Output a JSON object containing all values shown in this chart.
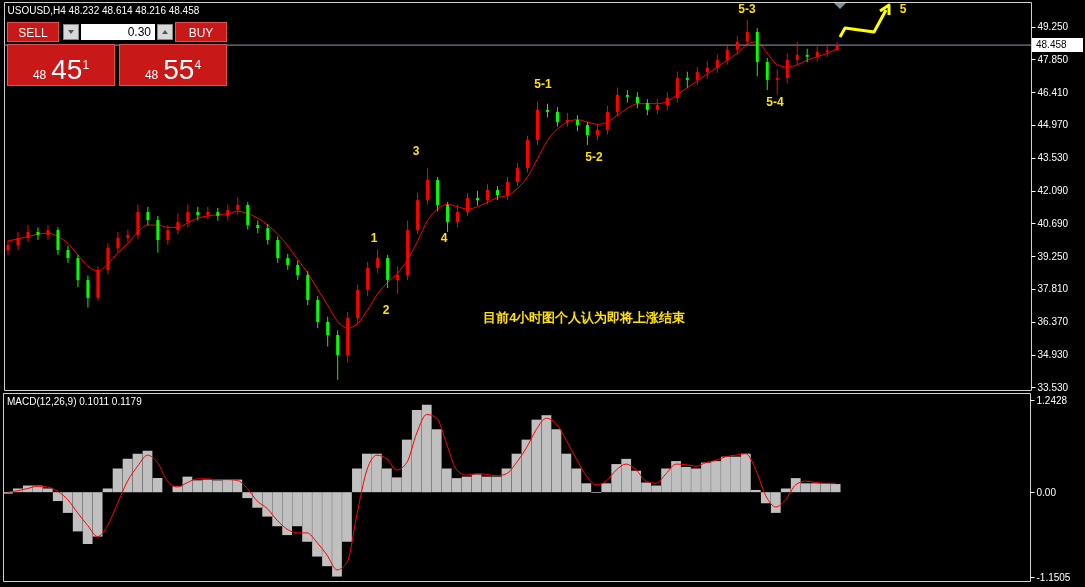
{
  "chart_data": [
    {
      "type": "candlestick",
      "title": "USOUSD,H4 48.232 48.614 48.216 48.458",
      "categories": [
        null,
        null,
        null,
        null,
        null,
        null,
        null,
        null,
        null,
        null,
        null,
        null,
        null,
        null,
        null,
        null,
        null,
        null,
        null,
        null,
        null,
        null,
        null,
        null,
        null,
        null,
        null,
        null,
        null,
        null,
        null,
        null,
        null,
        null,
        null,
        null,
        null,
        null,
        null,
        null,
        null,
        null,
        null,
        null,
        null,
        null,
        null,
        null,
        null,
        null,
        null,
        null,
        null,
        null,
        null,
        null,
        null,
        null,
        null,
        null,
        null,
        null,
        null,
        null,
        null,
        null,
        null,
        null,
        null,
        null,
        null,
        null,
        null,
        null,
        null,
        null,
        null,
        null,
        null,
        null,
        null,
        null,
        null,
        null,
        null,
        null,
        null,
        null,
        null,
        null,
        null,
        null,
        null,
        null,
        null,
        null,
        null,
        null,
        null,
        null,
        null,
        null,
        null
      ],
      "ohlc": [
        [
          39.5,
          39.93,
          39.3,
          39.73
        ],
        [
          39.73,
          40.3,
          39.5,
          40.04
        ],
        [
          40.04,
          40.6,
          39.85,
          40.3
        ],
        [
          40.3,
          40.5,
          39.95,
          40.17
        ],
        [
          40.17,
          40.6,
          39.95,
          40.38
        ],
        [
          40.38,
          40.5,
          39.3,
          39.51
        ],
        [
          39.51,
          39.7,
          38.95,
          39.16
        ],
        [
          39.16,
          39.3,
          37.9,
          38.2
        ],
        [
          38.2,
          38.4,
          37.0,
          37.42
        ],
        [
          37.42,
          38.8,
          37.3,
          38.64
        ],
        [
          38.64,
          39.8,
          38.45,
          39.6
        ],
        [
          39.6,
          40.3,
          39.4,
          40.04
        ],
        [
          40.04,
          40.4,
          39.85,
          40.17
        ],
        [
          40.17,
          41.5,
          40.0,
          41.17
        ],
        [
          41.17,
          41.4,
          40.6,
          40.82
        ],
        [
          40.82,
          41.0,
          39.4,
          39.95
        ],
        [
          39.95,
          40.6,
          39.75,
          40.38
        ],
        [
          40.38,
          41.1,
          40.2,
          40.73
        ],
        [
          40.73,
          41.5,
          40.5,
          41.17
        ],
        [
          41.17,
          41.4,
          40.8,
          41.04
        ],
        [
          41.04,
          41.4,
          40.85,
          41.17
        ],
        [
          41.17,
          41.35,
          40.8,
          41.0
        ],
        [
          41.0,
          41.5,
          40.8,
          41.26
        ],
        [
          41.26,
          41.8,
          41.05,
          41.48
        ],
        [
          41.48,
          41.6,
          40.4,
          40.6
        ],
        [
          40.6,
          40.8,
          40.25,
          40.47
        ],
        [
          40.47,
          40.65,
          39.75,
          39.95
        ],
        [
          39.95,
          40.1,
          38.95,
          39.16
        ],
        [
          39.16,
          39.35,
          38.65,
          38.86
        ],
        [
          38.86,
          39.05,
          38.2,
          38.42
        ],
        [
          38.42,
          38.6,
          37.1,
          37.33
        ],
        [
          37.33,
          37.5,
          36.1,
          36.37
        ],
        [
          36.37,
          36.6,
          35.3,
          35.8
        ],
        [
          35.8,
          36.0,
          33.85,
          34.93
        ],
        [
          34.93,
          36.8,
          34.6,
          36.54
        ],
        [
          36.54,
          38.0,
          36.3,
          37.77
        ],
        [
          37.77,
          39.0,
          37.5,
          38.73
        ],
        [
          38.73,
          39.55,
          38.5,
          39.16
        ],
        [
          39.16,
          39.3,
          37.85,
          38.2
        ],
        [
          38.2,
          38.8,
          37.6,
          38.42
        ],
        [
          38.42,
          40.8,
          38.2,
          40.38
        ],
        [
          40.38,
          42.0,
          40.2,
          41.69
        ],
        [
          41.69,
          43.1,
          41.5,
          42.57
        ],
        [
          42.57,
          42.7,
          41.2,
          41.48
        ],
        [
          41.48,
          41.6,
          40.3,
          40.73
        ],
        [
          40.73,
          41.5,
          40.5,
          41.17
        ],
        [
          41.17,
          42.0,
          41.0,
          41.78
        ],
        [
          41.78,
          42.1,
          41.45,
          41.69
        ],
        [
          41.69,
          42.4,
          41.5,
          42.13
        ],
        [
          42.13,
          42.3,
          41.7,
          41.91
        ],
        [
          41.91,
          42.7,
          41.7,
          42.48
        ],
        [
          42.48,
          43.3,
          42.3,
          43.09
        ],
        [
          43.09,
          44.5,
          42.9,
          44.32
        ],
        [
          44.32,
          46.0,
          44.1,
          45.63
        ],
        [
          45.63,
          45.9,
          45.3,
          45.54
        ],
        [
          45.54,
          45.75,
          44.9,
          45.1
        ],
        [
          45.1,
          45.5,
          44.9,
          45.19
        ],
        [
          45.19,
          45.4,
          44.7,
          44.97
        ],
        [
          44.97,
          45.1,
          44.1,
          44.53
        ],
        [
          44.53,
          45.0,
          44.3,
          44.75
        ],
        [
          44.75,
          45.8,
          44.55,
          45.54
        ],
        [
          45.54,
          46.6,
          45.35,
          46.28
        ],
        [
          46.28,
          46.5,
          45.95,
          46.2
        ],
        [
          46.2,
          46.4,
          45.7,
          45.93
        ],
        [
          45.93,
          46.1,
          45.4,
          45.63
        ],
        [
          45.63,
          46.1,
          45.45,
          45.84
        ],
        [
          45.84,
          46.4,
          45.6,
          46.15
        ],
        [
          46.15,
          47.3,
          45.95,
          47.02
        ],
        [
          47.02,
          47.3,
          46.6,
          46.94
        ],
        [
          46.94,
          47.5,
          46.7,
          47.28
        ],
        [
          47.28,
          47.75,
          47.0,
          47.46
        ],
        [
          47.46,
          48.05,
          47.25,
          47.81
        ],
        [
          47.81,
          48.5,
          47.6,
          48.25
        ],
        [
          48.25,
          48.85,
          48.05,
          48.6
        ],
        [
          48.6,
          49.55,
          48.4,
          49.03
        ],
        [
          49.03,
          49.2,
          47.1,
          47.72
        ],
        [
          47.72,
          47.9,
          46.5,
          46.94
        ],
        [
          46.94,
          47.4,
          46.3,
          47.02
        ],
        [
          47.02,
          48.1,
          46.8,
          47.81
        ],
        [
          47.81,
          48.6,
          47.6,
          48.03
        ],
        [
          48.03,
          48.3,
          47.7,
          47.95
        ],
        [
          47.95,
          48.4,
          47.75,
          48.16
        ],
        [
          48.16,
          48.5,
          47.95,
          48.232
        ],
        [
          48.232,
          48.614,
          48.216,
          48.458
        ],
        null,
        null,
        null,
        null,
        null,
        null,
        null,
        null,
        null,
        null,
        null,
        null,
        null,
        null,
        null,
        null,
        null,
        null,
        null
      ],
      "colors": [
        "#ff0000",
        "#ff0000",
        "#ff0000",
        "#00ff00",
        "#ff0000",
        "#00ff00",
        "#00ff00",
        "#00ff00",
        "#00ff00",
        "#ff0000",
        "#ff0000",
        "#ff0000",
        "#ff0000",
        "#ff0000",
        "#00ff00",
        "#00ff00",
        "#ff0000",
        "#ff0000",
        "#ff0000",
        "#00ff00",
        "#ff0000",
        "#00ff00",
        "#ff0000",
        "#ff0000",
        "#00ff00",
        "#00ff00",
        "#00ff00",
        "#00ff00",
        "#00ff00",
        "#00ff00",
        "#00ff00",
        "#00ff00",
        "#00ff00",
        "#00ff00",
        "#ff0000",
        "#ff0000",
        "#ff0000",
        "#ff0000",
        "#00ff00",
        "#ff0000",
        "#ff0000",
        "#ff0000",
        "#ff0000",
        "#00ff00",
        "#00ff00",
        "#ff0000",
        "#ff0000",
        "#00ff00",
        "#ff0000",
        "#00ff00",
        "#ff0000",
        "#ff0000",
        "#ff0000",
        "#ff0000",
        "#00ff00",
        "#00ff00",
        "#ff0000",
        "#00ff00",
        "#00ff00",
        "#ff0000",
        "#ff0000",
        "#ff0000",
        "#00ff00",
        "#00ff00",
        "#00ff00",
        "#ff0000",
        "#ff0000",
        "#ff0000",
        "#00ff00",
        "#ff0000",
        "#ff0000",
        "#ff0000",
        "#ff0000",
        "#ff0000",
        "#ff0000",
        "#00ff00",
        "#00ff00",
        "#ff0000",
        "#ff0000",
        "#ff0000",
        "#00ff00",
        "#ff0000",
        "#ff0000",
        "#ff0000",
        null,
        null,
        null,
        null,
        null,
        null,
        null,
        null,
        null,
        null,
        null,
        null,
        null,
        null,
        null,
        null,
        null,
        null,
        null
      ],
      "series": [
        {
          "type": "line",
          "color": "#ff0000",
          "values": [
            39.9,
            40.0,
            40.1,
            40.2,
            40.25,
            40.1,
            39.8,
            39.3,
            38.8,
            38.6,
            38.9,
            39.4,
            39.8,
            40.3,
            40.6,
            40.6,
            40.5,
            40.5,
            40.7,
            40.9,
            41.0,
            41.05,
            41.1,
            41.2,
            41.1,
            40.9,
            40.6,
            40.2,
            39.7,
            39.1,
            38.5,
            37.8,
            37.1,
            36.4,
            36.1,
            36.3,
            36.9,
            37.6,
            38.1,
            38.5,
            39.1,
            39.9,
            40.8,
            41.3,
            41.5,
            41.4,
            41.3,
            41.4,
            41.6,
            41.8,
            41.9,
            42.2,
            42.7,
            43.5,
            44.3,
            44.8,
            45.1,
            45.2,
            45.1,
            45.0,
            45.1,
            45.4,
            45.7,
            45.9,
            45.9,
            45.9,
            46.0,
            46.3,
            46.6,
            46.9,
            47.2,
            47.5,
            47.8,
            48.1,
            48.5,
            48.6,
            48.1,
            47.6,
            47.5,
            47.6,
            47.8,
            47.95,
            48.1,
            48.3,
            null,
            null,
            null,
            null,
            null,
            null,
            null,
            null,
            null,
            null,
            null,
            null,
            null,
            null,
            null,
            null,
            null,
            null,
            null
          ]
        }
      ],
      "ylim": [
        33.4,
        50.34
      ],
      "yticks": [
        {
          "value": 49.25,
          "label": "49.250"
        },
        {
          "value": 47.85,
          "label": "47.850"
        },
        {
          "value": 46.41,
          "label": "46.410"
        },
        {
          "value": 44.97,
          "label": "44.970"
        },
        {
          "value": 43.53,
          "label": "43.530"
        },
        {
          "value": 42.09,
          "label": "42.090"
        },
        {
          "value": 40.69,
          "label": "40.690"
        },
        {
          "value": 39.25,
          "label": "39.250"
        },
        {
          "value": 37.81,
          "label": "37.810"
        },
        {
          "value": 36.37,
          "label": "36.370"
        },
        {
          "value": 34.93,
          "label": "34.930"
        },
        {
          "value": 33.53,
          "label": "33.530"
        }
      ],
      "ref_lines": [
        {
          "axis": "y",
          "value": 48.458,
          "label": "48.458",
          "color": "#8c9cb0"
        }
      ],
      "annotations": [
        "SELL",
        "0.30",
        "BUY",
        "48 45$^{1}$",
        "48 55$^{4}$",
        "目前4小时图个人认为即将上涨结束",
        "1",
        "2",
        "3",
        "4",
        "5-1",
        "5-2",
        "5-3",
        "5-4",
        "5"
      ],
      "tick_labels": "y"
    },
    {
      "type": "bar",
      "title": "MACD(12,26,9) 0.1011 0.1179",
      "categories": [
        null,
        null,
        null,
        null,
        null,
        null,
        null,
        null,
        null,
        null,
        null,
        null,
        null,
        null,
        null,
        null,
        null,
        null,
        null,
        null,
        null,
        null,
        null,
        null,
        null,
        null,
        null,
        null,
        null,
        null,
        null,
        null,
        null,
        null,
        null,
        null,
        null,
        null,
        null,
        null,
        null,
        null,
        null,
        null,
        null,
        null,
        null,
        null,
        null,
        null,
        null,
        null,
        null,
        null,
        null,
        null,
        null,
        null,
        null,
        null,
        null,
        null,
        null,
        null,
        null,
        null,
        null,
        null,
        null,
        null,
        null,
        null,
        null,
        null,
        null,
        null,
        null,
        null,
        null,
        null,
        null,
        null,
        null,
        null,
        null,
        null,
        null,
        null,
        null,
        null,
        null,
        null,
        null,
        null,
        null,
        null,
        null,
        null,
        null,
        null,
        null,
        null,
        null
      ],
      "series": [
        {
          "color": "#c0c0c0",
          "values": [
            -0.02,
            0.05,
            0.09,
            0.09,
            0.05,
            -0.12,
            -0.28,
            -0.53,
            -0.7,
            -0.6,
            0.05,
            0.32,
            0.45,
            0.52,
            0.56,
            0.19,
            0,
            0.08,
            0.21,
            0.16,
            0.17,
            0.16,
            0.17,
            0.17,
            -0.08,
            -0.21,
            -0.33,
            -0.46,
            -0.58,
            -0.46,
            -0.67,
            -0.87,
            -1.0,
            -1.14,
            -0.67,
            0.32,
            0.52,
            0.52,
            0.32,
            0.2,
            0.71,
            1.11,
            1.18,
            0.85,
            0.32,
            0.19,
            0.21,
            0.24,
            0.21,
            0.21,
            0.32,
            0.52,
            0.71,
            0.98,
            1.04,
            0.85,
            0.52,
            0.32,
            0.12,
            -0.01,
            0.12,
            0.38,
            0.45,
            0.29,
            0.13,
            0.09,
            0.32,
            0.42,
            0.34,
            0.32,
            0.4,
            0.42,
            0.48,
            0.48,
            0.52,
            0.03,
            -0.15,
            -0.28,
            0.05,
            0.19,
            0.12,
            0.12,
            0.12,
            0.11,
            null,
            null,
            null,
            null,
            null,
            null,
            null,
            null,
            null,
            null,
            null,
            null,
            null,
            null,
            null,
            null,
            null,
            null,
            null
          ]
        },
        {
          "type": "line",
          "color": "#ff0000",
          "values": [
            0.0,
            0.02,
            0.05,
            0.08,
            0.07,
            0.01,
            -0.1,
            -0.28,
            -0.45,
            -0.6,
            -0.45,
            -0.15,
            0.15,
            0.35,
            0.5,
            0.4,
            0.15,
            0.07,
            0.13,
            0.18,
            0.18,
            0.17,
            0.17,
            0.16,
            0.05,
            -0.12,
            -0.22,
            -0.38,
            -0.5,
            -0.55,
            -0.55,
            -0.68,
            -0.85,
            -1.05,
            -0.95,
            -0.3,
            0.3,
            0.5,
            0.45,
            0.3,
            0.4,
            0.8,
            1.05,
            1.0,
            0.65,
            0.3,
            0.23,
            0.25,
            0.24,
            0.22,
            0.25,
            0.4,
            0.6,
            0.85,
            1.0,
            0.92,
            0.7,
            0.45,
            0.22,
            0.1,
            0.15,
            0.3,
            0.38,
            0.3,
            0.15,
            0.12,
            0.25,
            0.38,
            0.37,
            0.35,
            0.4,
            0.43,
            0.48,
            0.5,
            0.52,
            0.3,
            -0.05,
            -0.2,
            -0.1,
            0.1,
            0.15,
            0.13,
            0.12,
            0.12,
            null,
            null,
            null,
            null,
            null,
            null,
            null,
            null,
            null,
            null,
            null,
            null,
            null,
            null,
            null,
            null,
            null,
            null,
            null
          ]
        }
      ],
      "ylim": [
        -1.2,
        1.34
      ],
      "yticks": [
        1.2428,
        {
          "value": 0,
          "label": "0.00"
        },
        -1.1505
      ],
      "tick_labels": "y"
    }
  ]
}
